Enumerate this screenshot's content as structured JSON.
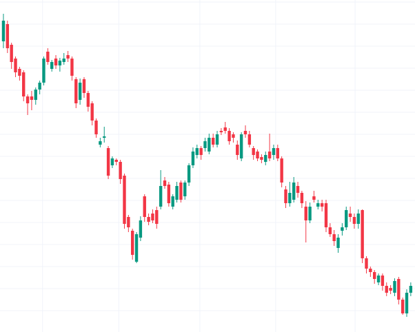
{
  "chart_data": {
    "type": "candlestick",
    "open": [
      422,
      447,
      417,
      397,
      382,
      377,
      342,
      342,
      337,
      352,
      362,
      407,
      382,
      397,
      387,
      392,
      402,
      397,
      367,
      337,
      367,
      347,
      332,
      307,
      272,
      282,
      267,
      242,
      250,
      247,
      227,
      167,
      147,
      102,
      137,
      197,
      167,
      172,
      177,
      182,
      220,
      214,
      182,
      192,
      217,
      197,
      217,
      242,
      257,
      267,
      267,
      262,
      282,
      272,
      292,
      297,
      292,
      287,
      272,
      252,
      292,
      287,
      267,
      262,
      254,
      247,
      262,
      257,
      267,
      252,
      207,
      187,
      192,
      212,
      202,
      182,
      162,
      197,
      182,
      187,
      187,
      152,
      142,
      122,
      147,
      152,
      172,
      167,
      157,
      177,
      107,
      92,
      87,
      72,
      82,
      67,
      64,
      57,
      77,
      47,
      27,
      57
    ],
    "close": [
      452,
      412,
      392,
      377,
      372,
      342,
      332,
      337,
      352,
      362,
      397,
      392,
      392,
      387,
      394,
      397,
      397,
      372,
      332,
      362,
      347,
      327,
      307,
      287,
      277,
      284,
      227,
      252,
      247,
      222,
      157,
      152,
      112,
      142,
      162,
      167,
      160,
      162,
      157,
      212,
      212,
      187,
      197,
      212,
      192,
      217,
      242,
      262,
      267,
      257,
      277,
      282,
      272,
      287,
      290,
      292,
      277,
      282,
      257,
      287,
      287,
      272,
      257,
      252,
      250,
      257,
      252,
      267,
      252,
      217,
      187,
      202,
      217,
      202,
      187,
      162,
      182,
      192,
      187,
      182,
      152,
      142,
      132,
      137,
      152,
      177,
      167,
      157,
      172,
      107,
      92,
      87,
      77,
      82,
      67,
      57,
      60,
      74,
      47,
      27,
      57,
      67
    ],
    "high": [
      462,
      452,
      420,
      400,
      385,
      380,
      345,
      350,
      355,
      365,
      400,
      412,
      395,
      402,
      398,
      405,
      408,
      400,
      370,
      368,
      370,
      350,
      335,
      310,
      282,
      298,
      270,
      255,
      252,
      250,
      230,
      170,
      150,
      145,
      168,
      200,
      172,
      178,
      182,
      235,
      225,
      218,
      200,
      218,
      220,
      220,
      245,
      268,
      272,
      270,
      282,
      288,
      288,
      292,
      296,
      305,
      296,
      290,
      278,
      290,
      300,
      292,
      270,
      265,
      258,
      262,
      288,
      272,
      272,
      255,
      212,
      218,
      225,
      218,
      205,
      190,
      188,
      205,
      192,
      192,
      192,
      158,
      148,
      142,
      158,
      182,
      182,
      172,
      178,
      178,
      110,
      95,
      90,
      85,
      85,
      72,
      68,
      78,
      80,
      50,
      62,
      72
    ],
    "low": [
      412,
      405,
      382,
      370,
      365,
      335,
      315,
      322,
      330,
      345,
      358,
      388,
      378,
      382,
      378,
      388,
      392,
      365,
      325,
      330,
      340,
      320,
      300,
      282,
      268,
      275,
      222,
      238,
      242,
      215,
      150,
      145,
      105,
      100,
      132,
      160,
      155,
      158,
      150,
      178,
      208,
      182,
      178,
      188,
      188,
      192,
      212,
      238,
      252,
      250,
      262,
      258,
      268,
      268,
      286,
      288,
      272,
      275,
      250,
      248,
      282,
      268,
      250,
      248,
      245,
      242,
      248,
      250,
      248,
      210,
      180,
      182,
      188,
      195,
      180,
      130,
      158,
      188,
      178,
      175,
      145,
      138,
      125,
      115,
      140,
      148,
      160,
      150,
      150,
      100,
      85,
      80,
      70,
      68,
      60,
      52,
      55,
      52,
      40,
      25,
      22,
      52
    ],
    "up_color": "#089981",
    "down_color": "#f23645",
    "grid": true,
    "grid_color": "#f0f3fa",
    "ylim": [
      0,
      482
    ],
    "yticks": [
      31,
      63,
      95,
      127,
      159,
      191,
      223,
      255,
      287,
      319,
      351,
      383,
      415,
      447,
      479
    ],
    "xlim": [
      -0.85,
      102.05
    ],
    "xticks": [
      9.7,
      28.6,
      48.7,
      67.5,
      87.2
    ]
  }
}
